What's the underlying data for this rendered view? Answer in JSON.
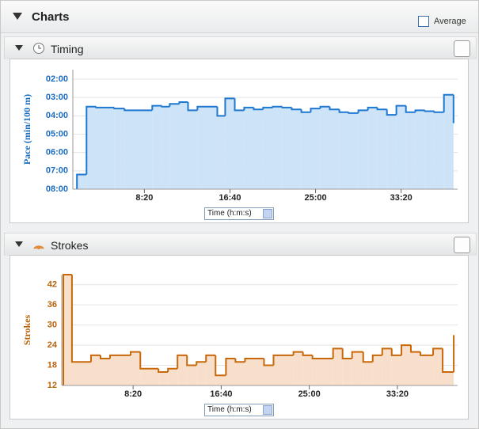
{
  "page": {
    "title": "Charts",
    "average": "Average"
  },
  "chart_data": [
    {
      "type": "step",
      "title": "Timing",
      "y_label": "Pace (min/100 m)",
      "x_label": "Time (h:m:s)",
      "color": "#1e78cf",
      "fill": "#cde3f8",
      "axis_color": "#1a6cc0",
      "grid": true,
      "xlim": [
        82,
        2330
      ],
      "xticks": [
        {
          "value": 500,
          "label": "8:20"
        },
        {
          "value": 1000,
          "label": "16:40"
        },
        {
          "value": 1500,
          "label": "25:00"
        },
        {
          "value": 2000,
          "label": "33:20"
        }
      ],
      "ylim": [
        8,
        2
      ],
      "yticks": [
        {
          "value": 2,
          "label": "02:00"
        },
        {
          "value": 3,
          "label": "03:00"
        },
        {
          "value": 4,
          "label": "04:00"
        },
        {
          "value": 5,
          "label": "05:00"
        },
        {
          "value": 6,
          "label": "06:00"
        },
        {
          "value": 7,
          "label": "07:00"
        },
        {
          "value": 8,
          "label": "08:00"
        }
      ],
      "x": [
        106,
        162,
        218,
        324,
        384,
        546,
        602,
        648,
        704,
        755,
        810,
        926,
        972,
        1028,
        1083,
        1139,
        1194,
        1250,
        1306,
        1361,
        1417,
        1472,
        1528,
        1583,
        1639,
        1694,
        1750,
        1806,
        1861,
        1917,
        1972,
        2028,
        2083,
        2139,
        2194,
        2250,
        2306
      ],
      "values": [
        7.2,
        3.5,
        3.55,
        3.6,
        3.7,
        3.45,
        3.5,
        3.35,
        3.25,
        3.7,
        3.5,
        4.0,
        3.05,
        3.7,
        3.55,
        3.65,
        3.55,
        3.5,
        3.55,
        3.65,
        3.8,
        3.6,
        3.5,
        3.65,
        3.8,
        3.85,
        3.7,
        3.55,
        3.65,
        3.95,
        3.45,
        3.8,
        3.7,
        3.75,
        3.8,
        2.85,
        4.4
      ]
    },
    {
      "type": "step",
      "title": "Strokes",
      "y_label": "Strokes",
      "x_label": "Time (h:m:s)",
      "color": "#c8680a",
      "fill": "#f7dfcb",
      "axis_color": "#b8620c",
      "grid": true,
      "xlim": [
        95,
        2342
      ],
      "xticks": [
        {
          "value": 500,
          "label": "8:20"
        },
        {
          "value": 1000,
          "label": "16:40"
        },
        {
          "value": 1500,
          "label": "25:00"
        },
        {
          "value": 2000,
          "label": "33:20"
        }
      ],
      "ylim": [
        12,
        45
      ],
      "yticks": [
        12,
        18,
        24,
        30,
        36,
        42
      ],
      "x": [
        104,
        153,
        261,
        315,
        369,
        486,
        541,
        644,
        698,
        752,
        806,
        860,
        914,
        968,
        1027,
        1081,
        1135,
        1243,
        1297,
        1410,
        1464,
        1518,
        1635,
        1689,
        1743,
        1806,
        1860,
        1914,
        1968,
        2023,
        2077,
        2131,
        2203,
        2257,
        2320
      ],
      "values": [
        45,
        19,
        21,
        20,
        21,
        22,
        17,
        16,
        17,
        21,
        18,
        19,
        21,
        15,
        20,
        19,
        20,
        18,
        21,
        22,
        21,
        20,
        23,
        20,
        22,
        19,
        21,
        23,
        21,
        24,
        22,
        21,
        23,
        16,
        27
      ]
    }
  ]
}
